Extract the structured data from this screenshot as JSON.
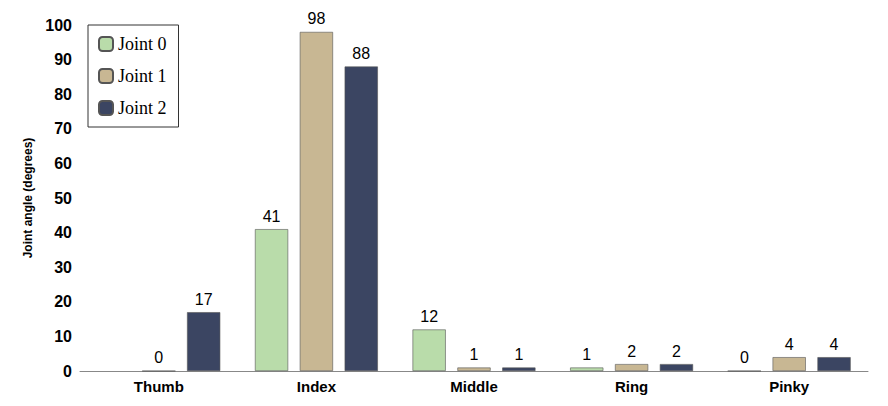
{
  "chart_data": {
    "type": "bar",
    "y_label": "Joint angle (degrees)",
    "categories": [
      "Thumb",
      "Index",
      "Middle",
      "Ring",
      "Pinky"
    ],
    "series": [
      {
        "name": "Joint 0",
        "color": "#b9dcaa",
        "values": [
          null,
          41,
          12,
          1,
          0
        ]
      },
      {
        "name": "Joint 1",
        "color": "#c8b793",
        "values": [
          0,
          98,
          1,
          2,
          4
        ]
      },
      {
        "name": "Joint 2",
        "color": "#3b4562",
        "values": [
          17,
          88,
          1,
          2,
          4
        ]
      }
    ],
    "ylim": [
      0,
      100
    ],
    "yticks": [
      0,
      10,
      20,
      30,
      40,
      50,
      60,
      70,
      80,
      90,
      100
    ],
    "grid": false,
    "legend": "top-left",
    "data_labels": true
  }
}
